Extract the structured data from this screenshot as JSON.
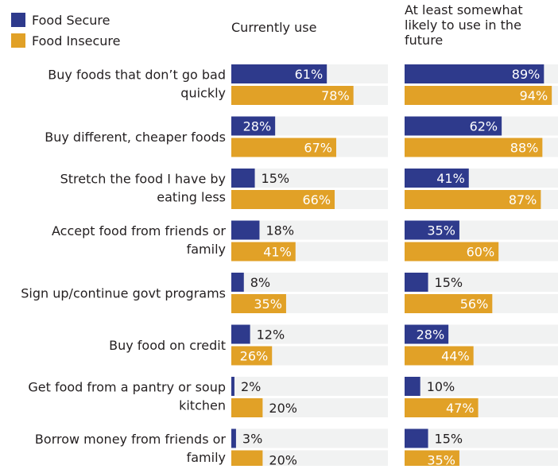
{
  "chart_data": {
    "type": "bar",
    "orientation": "horizontal",
    "legend": {
      "placement": "top-left"
    },
    "panels": [
      {
        "title": "Currently use",
        "xlim": [
          0,
          100
        ]
      },
      {
        "title": "At least somewhat likely to use in the future",
        "xlim": [
          0,
          100
        ]
      }
    ],
    "categories": [
      "Buy foods that don’t go bad quickly",
      "Buy different, cheaper foods",
      "Stretch the food I have by eating less",
      "Accept food from friends or family",
      "Sign up/continue govt programs",
      "Buy food on credit",
      "Get food from a pantry or soup kitchen",
      "Borrow money from friends or family"
    ],
    "series": [
      {
        "name": "Food Secure",
        "color": "#2e3a8c",
        "currently_use": [
          61,
          28,
          15,
          18,
          8,
          12,
          2,
          3
        ],
        "likely_future": [
          89,
          62,
          41,
          35,
          15,
          28,
          10,
          15
        ]
      },
      {
        "name": "Food Insecure",
        "color": "#e1a127",
        "currently_use": [
          78,
          67,
          66,
          41,
          35,
          26,
          20,
          20
        ],
        "likely_future": [
          94,
          88,
          87,
          60,
          56,
          44,
          47,
          35
        ]
      }
    ],
    "value_suffix": "%",
    "track_color": "#f1f2f2"
  }
}
